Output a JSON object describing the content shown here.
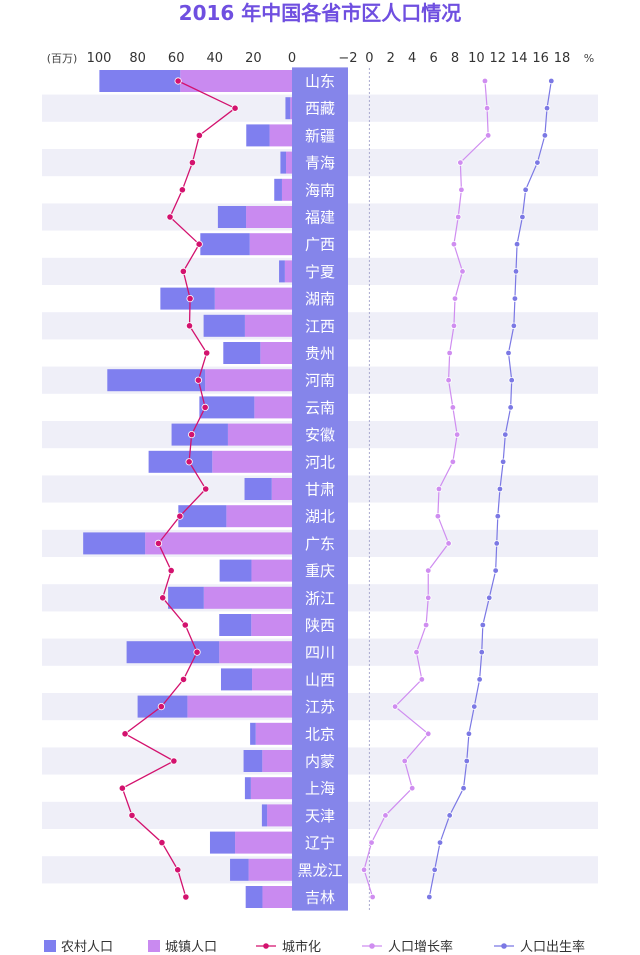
{
  "chart_data": {
    "type": "bar",
    "title": "2016 年中国各省市区人口情况",
    "colors": {
      "rural": "#7f7fef",
      "urban": "#c98af0",
      "urbanization": "#d3126e",
      "growth": "#cf8df0",
      "birth": "#7b78e4",
      "label_bg": "#8585ea",
      "label_text": "#ffffff",
      "title": "#6f4fe0",
      "stripe": "#efeff8"
    },
    "left_axis": {
      "unit": "(百万)",
      "ticks": [
        "100",
        "80",
        "60",
        "40",
        "20",
        "0"
      ],
      "tick_values": [
        100,
        80,
        60,
        40,
        20,
        0
      ],
      "range": [
        0,
        100
      ],
      "direction": "right-to-left"
    },
    "right_axis": {
      "unit": "%",
      "ticks": [
        "−2",
        "0",
        "2",
        "4",
        "6",
        "8",
        "10",
        "12",
        "14",
        "16",
        "18"
      ],
      "tick_values": [
        -2,
        0,
        2,
        4,
        6,
        8,
        10,
        12,
        14,
        16,
        18
      ],
      "range": [
        -2,
        18
      ]
    },
    "urbanization_axis": {
      "range": [
        0,
        100
      ],
      "direction": "right-to-left",
      "note": "plotted on same scale as left axis, in %"
    },
    "categories": [
      "山东",
      "西藏",
      "新疆",
      "青海",
      "海南",
      "福建",
      "广西",
      "宁夏",
      "湖南",
      "江西",
      "贵州",
      "河南",
      "云南",
      "安徽",
      "河北",
      "甘肃",
      "湖北",
      "广东",
      "重庆",
      "浙江",
      "陕西",
      "四川",
      "山西",
      "江苏",
      "北京",
      "内蒙",
      "上海",
      "天津",
      "辽宁",
      "黑龙江",
      "吉林"
    ],
    "series": [
      {
        "name": "农村人口",
        "key": "rural",
        "values": [
          41.9,
          2.5,
          12.1,
          2.9,
          4.0,
          14.6,
          25.6,
          3.0,
          28.2,
          21.4,
          19.2,
          50.7,
          28.5,
          29.2,
          33.0,
          14.1,
          24.9,
          32.1,
          16.5,
          18.5,
          16.6,
          48.0,
          16.1,
          25.8,
          2.9,
          9.7,
          3.1,
          2.7,
          13.0,
          9.6,
          8.7
        ]
      },
      {
        "name": "城镇人口",
        "key": "urban",
        "values": [
          57.9,
          0.9,
          11.6,
          3.1,
          5.2,
          23.8,
          21.9,
          3.7,
          40.0,
          24.4,
          16.4,
          45.0,
          19.5,
          33.2,
          41.3,
          10.5,
          34.0,
          76.1,
          21.0,
          45.7,
          21.1,
          37.7,
          20.7,
          54.2,
          18.8,
          15.4,
          21.3,
          12.9,
          29.5,
          22.5,
          15.3
        ]
      },
      {
        "name": "城市化",
        "key": "urbanization",
        "values": [
          59.0,
          29.5,
          48.0,
          51.6,
          56.8,
          63.2,
          48.1,
          56.3,
          52.8,
          53.1,
          44.2,
          48.5,
          45.0,
          52.0,
          53.3,
          44.7,
          58.1,
          69.2,
          62.6,
          67.0,
          55.3,
          49.2,
          56.2,
          67.7,
          86.5,
          61.2,
          87.9,
          82.9,
          67.4,
          59.2,
          55.0
        ]
      },
      {
        "name": "人口增长率",
        "key": "growth",
        "values": [
          10.8,
          11.0,
          11.1,
          8.5,
          8.6,
          8.3,
          7.9,
          8.7,
          8.0,
          7.9,
          7.5,
          7.4,
          7.8,
          8.2,
          7.8,
          6.5,
          6.4,
          7.4,
          5.5,
          5.5,
          5.3,
          4.4,
          4.9,
          2.4,
          5.5,
          3.3,
          4.0,
          1.5,
          0.2,
          -0.5,
          0.3
        ]
      },
      {
        "name": "人口出生率",
        "key": "birth",
        "values": [
          17.0,
          16.6,
          16.4,
          15.7,
          14.6,
          14.3,
          13.8,
          13.7,
          13.6,
          13.5,
          13.0,
          13.3,
          13.2,
          12.7,
          12.5,
          12.2,
          12.0,
          11.9,
          11.8,
          11.2,
          10.6,
          10.5,
          10.3,
          9.8,
          9.3,
          9.1,
          8.8,
          7.5,
          6.6,
          6.1,
          5.6
        ]
      }
    ],
    "legend": [
      {
        "label": "农村人口",
        "key": "rural",
        "marker": "square"
      },
      {
        "label": "城镇人口",
        "key": "urban",
        "marker": "square"
      },
      {
        "label": "城市化",
        "key": "urbanization",
        "marker": "line-dot"
      },
      {
        "label": "人口增长率",
        "key": "growth",
        "marker": "line-dot"
      },
      {
        "label": "人口出生率",
        "key": "birth",
        "marker": "line-dot"
      }
    ],
    "legend_position": "bottom",
    "grid": false
  }
}
